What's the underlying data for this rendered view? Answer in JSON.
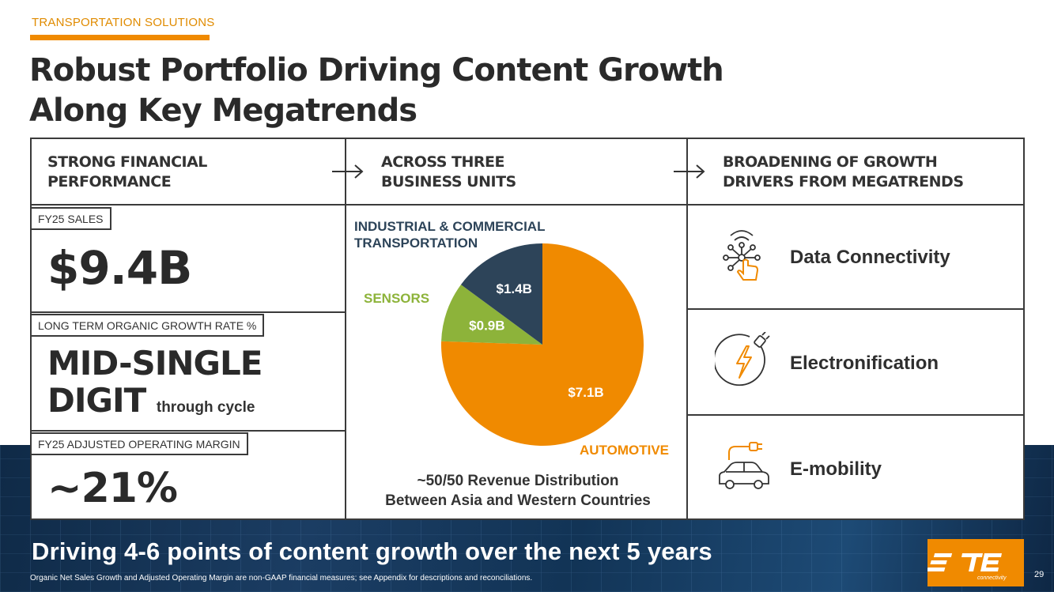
{
  "header": {
    "section": "TRANSPORTATION SOLUTIONS",
    "title_line1": "Robust Portfolio Driving Content Growth",
    "title_line2": "Along Key Megatrends"
  },
  "columns": {
    "col1_line1": "STRONG FINANCIAL",
    "col1_line2": "PERFORMANCE",
    "col2_line1": "ACROSS THREE",
    "col2_line2": "BUSINESS UNITS",
    "col3_line1": "BROADENING OF GROWTH",
    "col3_line2": "DRIVERS FROM MEGATRENDS"
  },
  "financials": {
    "sales_tag": "FY25 SALES",
    "sales_value": "$9.4B",
    "growth_tag": "LONG TERM ORGANIC GROWTH RATE %",
    "growth_line1": "MID-SINGLE",
    "growth_line2": "DIGIT",
    "growth_note": "through cycle",
    "margin_tag": "FY25 ADJUSTED OPERATING MARGIN",
    "margin_value": "~21%"
  },
  "chart_data": {
    "type": "pie",
    "slices": [
      {
        "name": "AUTOMOTIVE",
        "value": 7.1,
        "label": "$7.1B",
        "color": "#f08a00"
      },
      {
        "name": "SENSORS",
        "value": 0.9,
        "label": "$0.9B",
        "color": "#8db33a"
      },
      {
        "name": "INDUSTRIAL & COMMERCIAL TRANSPORTATION",
        "value": 1.4,
        "label": "$1.4B",
        "color": "#2d4459"
      }
    ],
    "category_labels": {
      "automotive": "AUTOMOTIVE",
      "sensors": "SENSORS",
      "ict_line1": "INDUSTRIAL & COMMERCIAL",
      "ict_line2": "TRANSPORTATION"
    },
    "category_colors": {
      "automotive": "#f08a00",
      "sensors": "#8db33a",
      "ict": "#2d4459"
    }
  },
  "revenue_note": {
    "line1": "~50/50 Revenue Distribution",
    "line2": "Between Asia and Western Countries"
  },
  "megatrends": [
    {
      "label": "Data Connectivity",
      "icon": "data-connectivity-icon"
    },
    {
      "label": "Electronification",
      "icon": "lightning-plug-icon"
    },
    {
      "label": "E-mobility",
      "icon": "electric-car-icon"
    }
  ],
  "banner": "Driving 4-6 points of content growth over the next 5 years",
  "footnote": "Organic Net Sales Growth and Adjusted Operating Margin are non-GAAP financial measures; see Appendix for descriptions and reconciliations.",
  "page_number": "29",
  "logo": {
    "text": "TE",
    "subtext": "connectivity"
  },
  "colors": {
    "accent": "#f08a00",
    "dark": "#2a2a2a",
    "navy": "#1b3d63"
  }
}
